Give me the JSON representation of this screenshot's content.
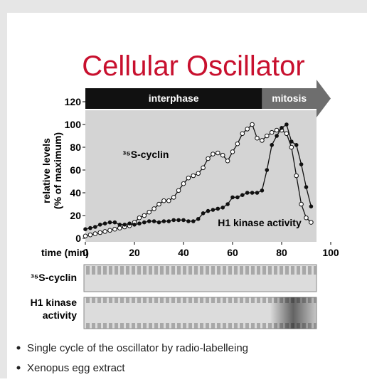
{
  "title": "Cellular Oscillator",
  "chart_data": {
    "type": "line",
    "x_label": "time (min)",
    "y_label": [
      "relative levels",
      "(% of maximum)"
    ],
    "phases": [
      {
        "label": "interphase",
        "start": 0,
        "end": 72
      },
      {
        "label": "mitosis",
        "start": 72,
        "end": 100
      }
    ],
    "x": [
      0,
      2,
      4,
      6,
      8,
      10,
      12,
      14,
      16,
      18,
      20,
      22,
      24,
      26,
      28,
      30,
      32,
      34,
      36,
      38,
      40,
      42,
      44,
      46,
      48,
      50,
      52,
      54,
      56,
      58,
      60,
      62,
      64,
      66,
      68,
      70,
      72,
      74,
      76,
      78,
      80,
      82,
      84,
      86,
      88,
      90,
      92
    ],
    "series": [
      {
        "name": "³⁵S-cyclin",
        "color": "#111111",
        "marker": "open",
        "values": [
          2,
          3,
          4,
          5,
          6,
          7,
          8,
          9,
          10,
          11,
          14,
          18,
          20,
          23,
          26,
          30,
          33,
          33,
          36,
          42,
          48,
          53,
          55,
          57,
          62,
          70,
          74,
          75,
          73,
          68,
          76,
          83,
          92,
          96,
          100,
          88,
          86,
          90,
          93,
          95,
          95,
          92,
          80,
          55,
          30,
          18,
          14
        ]
      },
      {
        "name": "H1 kinase activity",
        "color": "#111111",
        "marker": "filled",
        "values": [
          8,
          9,
          10,
          12,
          13,
          14,
          14,
          12,
          12,
          13,
          12,
          13,
          14,
          15,
          15,
          14,
          15,
          15,
          16,
          16,
          16,
          15,
          15,
          17,
          22,
          24,
          25,
          26,
          27,
          30,
          36,
          36,
          38,
          40,
          40,
          40,
          42,
          60,
          82,
          90,
          97,
          100,
          85,
          82,
          65,
          45,
          28
        ]
      }
    ],
    "xlim": [
      0,
      100
    ],
    "xticks": [
      0,
      20,
      40,
      60,
      80,
      100
    ],
    "ylim": [
      0,
      120
    ],
    "yticks": [
      0,
      20,
      40,
      60,
      80,
      100,
      120
    ]
  },
  "gels": [
    {
      "label": [
        "³⁵S-cyclin"
      ]
    },
    {
      "label": [
        "H1 kinase",
        "activity"
      ]
    }
  ],
  "bullets": [
    "Single cycle of the oscillator by radio-labelleing",
    "Xenopus egg extract"
  ]
}
